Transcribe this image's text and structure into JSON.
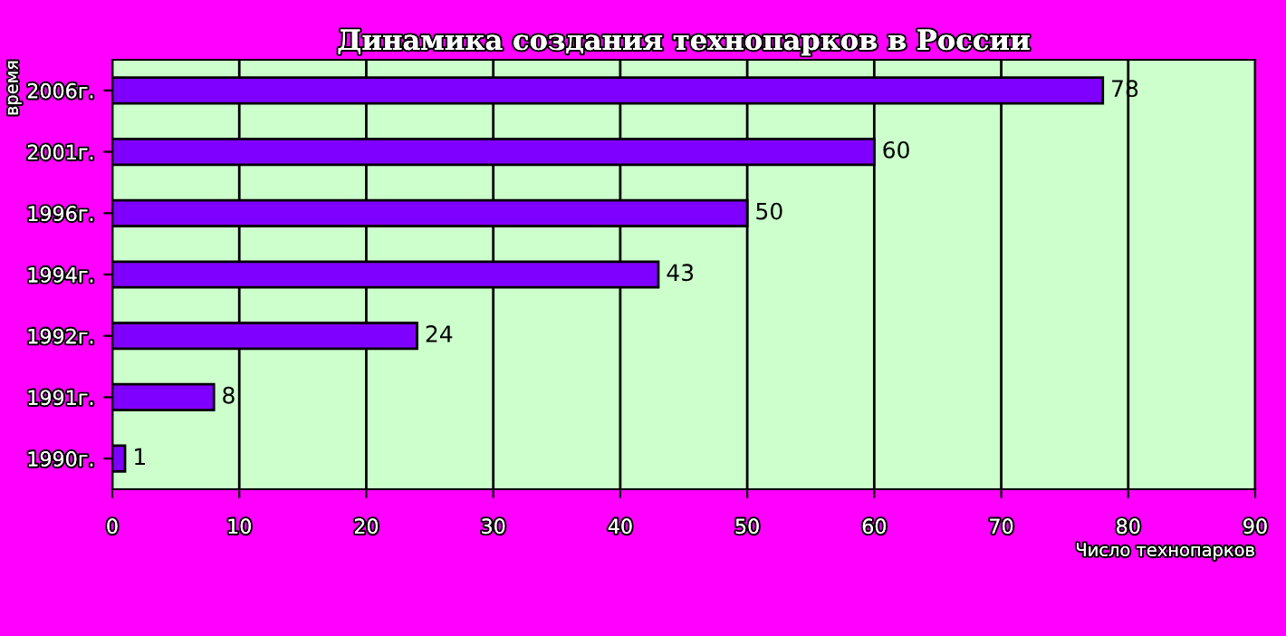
{
  "chart_data": {
    "type": "bar",
    "orientation": "horizontal",
    "title": "Динамика создания технопарков в России",
    "xlabel": "Число технопарков",
    "ylabel": "время",
    "categories": [
      "2006г.",
      "2001г.",
      "1996г.",
      "1994г.",
      "1992г.",
      "1991г.",
      "1990г."
    ],
    "values": [
      78,
      60,
      50,
      43,
      24,
      8,
      1
    ],
    "color": "#8000ff",
    "xlim": [
      0,
      90
    ],
    "xticks": [
      0,
      10,
      20,
      30,
      40,
      50,
      60,
      70,
      80,
      90
    ],
    "grid": "x",
    "data_labels": true
  }
}
